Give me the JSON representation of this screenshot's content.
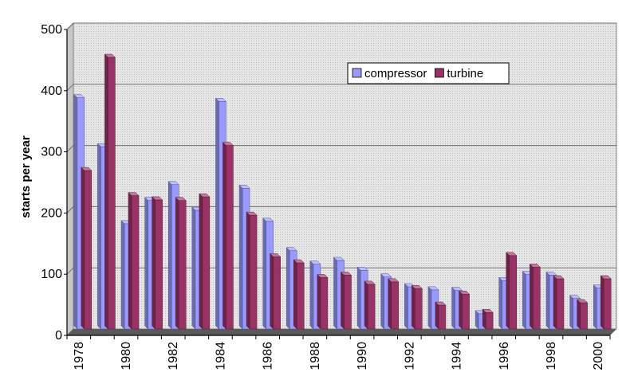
{
  "chart_data": {
    "type": "bar",
    "title": "",
    "xlabel": "",
    "ylabel": "starts per year",
    "ylim": [
      0,
      500
    ],
    "yticks": [
      0,
      100,
      200,
      300,
      400,
      500
    ],
    "grid": true,
    "legend_position": "top-center",
    "categories": [
      "1978",
      "1979",
      "1980",
      "1981",
      "1982",
      "1983",
      "1984",
      "1985",
      "1986",
      "1987",
      "1988",
      "1989",
      "1990",
      "1991",
      "1992",
      "1993",
      "1994",
      "1995",
      "1996",
      "1997",
      "1998",
      "1999",
      "2000"
    ],
    "xtick_labels": [
      "1978",
      "1980",
      "1982",
      "1984",
      "1986",
      "1988",
      "1990",
      "1992",
      "1994",
      "1996",
      "1998",
      "2000"
    ],
    "series": [
      {
        "name": "compressor",
        "color": "#9999ff",
        "values": [
          378,
          298,
          172,
          210,
          236,
          194,
          372,
          230,
          176,
          128,
          106,
          112,
          96,
          85,
          69,
          64,
          63,
          25,
          79,
          89,
          88,
          50,
          67
        ]
      },
      {
        "name": "turbine",
        "color": "#993366",
        "values": [
          259,
          444,
          218,
          211,
          210,
          216,
          300,
          186,
          118,
          108,
          84,
          88,
          73,
          77,
          66,
          39,
          57,
          27,
          120,
          101,
          82,
          43,
          82
        ]
      }
    ]
  }
}
